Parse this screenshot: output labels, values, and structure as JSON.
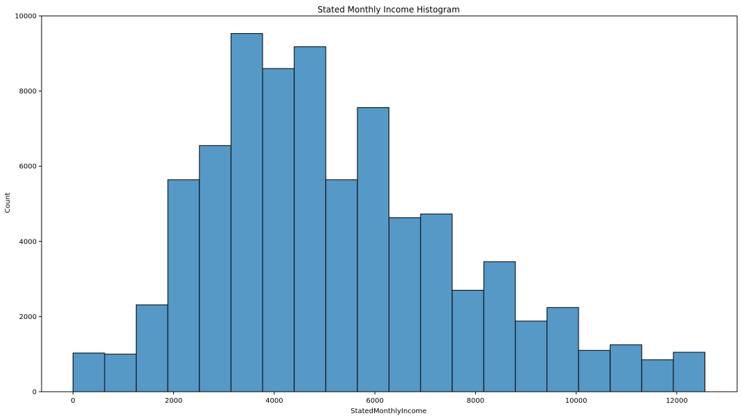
{
  "chart_data": {
    "type": "bar",
    "title": "Stated Monthly Income Histogram",
    "xlabel": "StatedMonthlyIncome",
    "ylabel": "Count",
    "xlim": [
      -625,
      13200
    ],
    "ylim": [
      0,
      10000
    ],
    "bin_edges": [
      0,
      628,
      1256,
      1884,
      2512,
      3140,
      3768,
      4396,
      5024,
      5652,
      6280,
      6908,
      7536,
      8164,
      8792,
      9420,
      10048,
      10676,
      11304,
      11932,
      12560
    ],
    "values": [
      1030,
      1000,
      2310,
      5640,
      6550,
      9530,
      8600,
      9180,
      5640,
      7560,
      4630,
      4730,
      2700,
      3460,
      1880,
      2240,
      1100,
      1250,
      850,
      1050
    ],
    "x_ticks": [
      0,
      2000,
      4000,
      6000,
      8000,
      10000,
      12000
    ],
    "x_tick_labels": [
      "0",
      "2000",
      "4000",
      "6000",
      "8000",
      "10000",
      "12000"
    ],
    "y_ticks": [
      0,
      2000,
      4000,
      6000,
      8000,
      10000
    ],
    "y_tick_labels": [
      "0",
      "2000",
      "4000",
      "6000",
      "8000",
      "10000"
    ],
    "bar_color": "#5698c6",
    "edge_color": "#000000",
    "grid": false
  }
}
